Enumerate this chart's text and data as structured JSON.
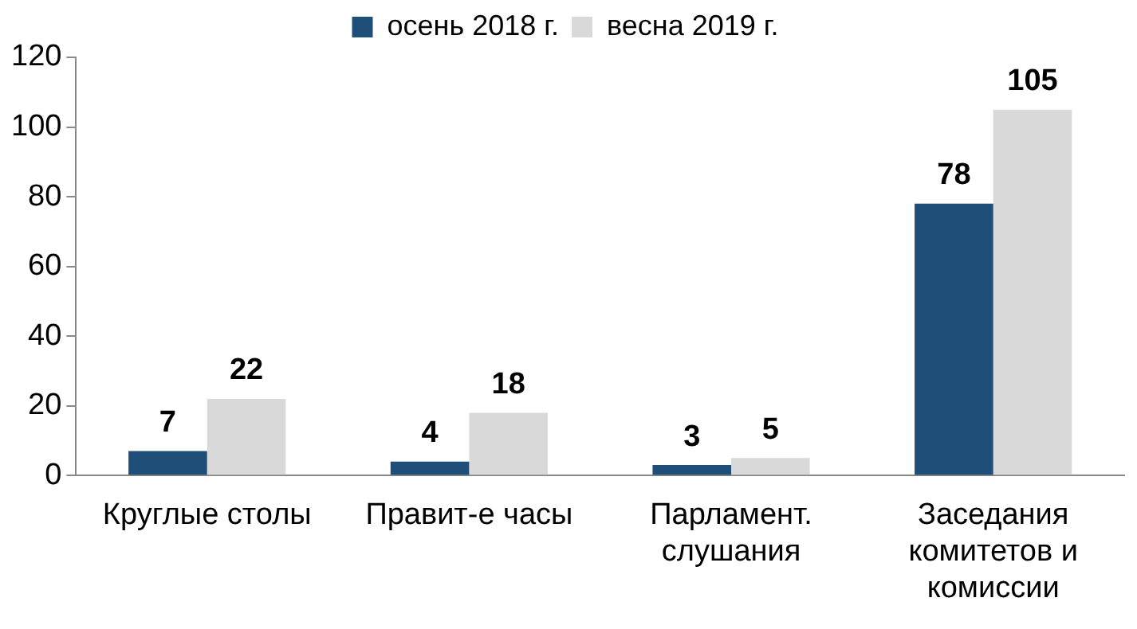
{
  "chart_data": {
    "type": "bar",
    "categories": [
      "Круглые столы",
      "Правит-е часы",
      "Парламент. слушания",
      "Заседания комитетов и комиссии"
    ],
    "series": [
      {
        "name": "осень 2018 г.",
        "color": "#1f4e79",
        "values": [
          7,
          4,
          3,
          78
        ]
      },
      {
        "name": "весна 2019 г.",
        "color": "#d9d9d9",
        "values": [
          22,
          18,
          5,
          105
        ]
      }
    ],
    "ylim": [
      0,
      120
    ],
    "yticks": [
      0,
      20,
      40,
      60,
      80,
      100,
      120
    ],
    "grid": false,
    "legend": "top",
    "data_labels": true
  }
}
